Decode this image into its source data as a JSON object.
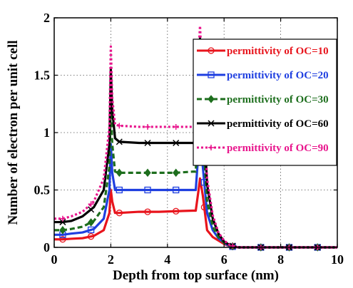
{
  "chart_data": {
    "type": "line",
    "xlabel": "Depth from top surface (nm)",
    "ylabel": "Number of electron per unit cell",
    "xlim": [
      0,
      10
    ],
    "ylim": [
      0,
      2
    ],
    "x_ticks": [
      "0",
      "2",
      "4",
      "6",
      "8",
      "10"
    ],
    "y_ticks": [
      "0",
      "0.5",
      "1",
      "1.5",
      "2"
    ],
    "grid": true,
    "grid_style": "dotted",
    "legend_position": "top-right",
    "series": [
      {
        "name": "permittivity of OC=10",
        "color": "#e8141c",
        "line_style": "solid",
        "marker": "circle",
        "x": [
          0,
          0.3,
          0.6,
          1.0,
          1.4,
          1.75,
          1.95,
          2.0,
          2.05,
          2.15,
          2.3,
          3.0,
          3.7,
          4.3,
          4.9,
          5.0,
          5.1,
          5.15,
          5.25,
          5.4,
          5.6,
          5.8,
          6.0,
          6.2,
          6.5,
          7.0,
          8.0,
          9.0,
          10.0
        ],
        "y": [
          0.07,
          0.07,
          0.075,
          0.08,
          0.1,
          0.15,
          0.3,
          0.5,
          0.4,
          0.3,
          0.3,
          0.31,
          0.31,
          0.315,
          0.32,
          0.32,
          0.5,
          0.6,
          0.45,
          0.15,
          0.09,
          0.06,
          0.03,
          0.01,
          0.0,
          0.0,
          0.0,
          0.0,
          0.0
        ],
        "marker_x": [
          0.3,
          1.3,
          2.3,
          3.3,
          4.3,
          5.3,
          6.3,
          7.3,
          8.3,
          9.3
        ]
      },
      {
        "name": "permittivity of OC=20",
        "color": "#1f3fe0",
        "line_style": "solid",
        "marker": "square",
        "x": [
          0,
          0.3,
          0.6,
          1.0,
          1.4,
          1.75,
          1.95,
          2.0,
          2.05,
          2.15,
          2.3,
          3.0,
          3.7,
          4.3,
          4.9,
          5.0,
          5.1,
          5.15,
          5.25,
          5.4,
          5.6,
          5.8,
          6.0,
          6.2,
          6.5,
          7.0,
          8.0,
          9.0,
          10.0
        ],
        "y": [
          0.11,
          0.11,
          0.12,
          0.13,
          0.16,
          0.25,
          0.5,
          0.9,
          0.65,
          0.5,
          0.5,
          0.5,
          0.5,
          0.5,
          0.5,
          0.5,
          0.85,
          1.0,
          0.7,
          0.3,
          0.15,
          0.08,
          0.04,
          0.01,
          0.0,
          0.0,
          0.0,
          0.0,
          0.0
        ],
        "marker_x": [
          0.3,
          1.3,
          2.3,
          3.3,
          4.3,
          5.3,
          6.3,
          7.3,
          8.3,
          9.3
        ]
      },
      {
        "name": "permittivity of OC=30",
        "color": "#1d6e1d",
        "line_style": "dashed",
        "marker": "diamond",
        "x": [
          0,
          0.3,
          0.6,
          1.0,
          1.4,
          1.75,
          1.95,
          2.0,
          2.05,
          2.15,
          2.3,
          3.0,
          3.7,
          4.3,
          4.9,
          5.0,
          5.1,
          5.15,
          5.25,
          5.4,
          5.6,
          5.8,
          6.0,
          6.2,
          6.5,
          7.0,
          8.0,
          9.0,
          10.0
        ],
        "y": [
          0.15,
          0.15,
          0.16,
          0.18,
          0.23,
          0.35,
          0.7,
          1.25,
          0.9,
          0.66,
          0.65,
          0.65,
          0.65,
          0.65,
          0.66,
          0.66,
          1.2,
          1.45,
          1.0,
          0.4,
          0.18,
          0.09,
          0.04,
          0.015,
          0.0,
          0.0,
          0.0,
          0.0,
          0.0
        ],
        "marker_x": [
          0.3,
          1.3,
          2.3,
          3.3,
          4.3,
          5.3,
          6.3,
          7.3,
          8.3,
          9.3
        ]
      },
      {
        "name": "permittivity of OC=60",
        "color": "#000000",
        "line_style": "solid",
        "marker": "x",
        "x": [
          0,
          0.3,
          0.6,
          1.0,
          1.4,
          1.75,
          1.95,
          2.0,
          2.05,
          2.15,
          2.3,
          3.0,
          3.7,
          4.3,
          4.9,
          5.0,
          5.1,
          5.15,
          5.25,
          5.4,
          5.6,
          5.8,
          6.0,
          6.2,
          6.5,
          7.0,
          8.0,
          9.0,
          10.0
        ],
        "y": [
          0.22,
          0.22,
          0.23,
          0.27,
          0.35,
          0.5,
          0.9,
          1.55,
          1.2,
          0.95,
          0.92,
          0.91,
          0.91,
          0.91,
          0.91,
          0.92,
          1.55,
          1.82,
          1.3,
          0.55,
          0.25,
          0.12,
          0.05,
          0.02,
          0.0,
          0.0,
          0.0,
          0.0,
          0.0
        ],
        "marker_x": [
          0.3,
          1.3,
          2.3,
          3.3,
          4.3,
          5.3,
          6.3,
          7.3,
          8.3,
          9.3
        ]
      },
      {
        "name": "permittivity of OC=90",
        "color": "#e8148c",
        "line_style": "dotted",
        "marker": "plus",
        "x": [
          0,
          0.3,
          0.6,
          1.0,
          1.4,
          1.75,
          1.95,
          2.0,
          2.05,
          2.15,
          2.3,
          3.0,
          3.7,
          4.3,
          4.9,
          5.0,
          5.1,
          5.15,
          5.25,
          5.4,
          5.6,
          5.8,
          6.0,
          6.2,
          6.5,
          7.0,
          8.0,
          9.0,
          10.0
        ],
        "y": [
          0.25,
          0.25,
          0.27,
          0.31,
          0.4,
          0.6,
          1.05,
          1.75,
          1.3,
          1.07,
          1.06,
          1.05,
          1.05,
          1.05,
          1.05,
          1.07,
          1.7,
          1.93,
          1.4,
          0.6,
          0.28,
          0.13,
          0.06,
          0.02,
          0.0,
          0.0,
          0.0,
          0.0,
          0.0
        ],
        "marker_x": [
          0.3,
          1.3,
          2.3,
          3.3,
          4.3,
          5.3,
          6.3,
          7.3,
          8.3,
          9.3
        ]
      }
    ]
  }
}
